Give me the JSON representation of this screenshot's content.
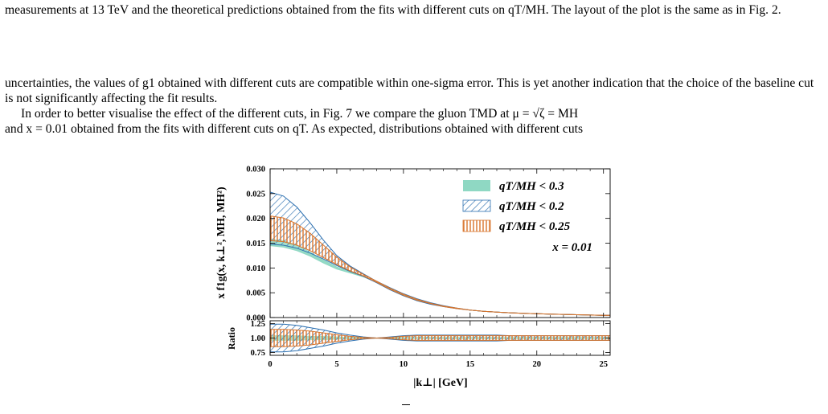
{
  "text": {
    "p1": "measurements at 13 TeV and the theoretical predictions obtained from the fits with different cuts on qT/MH. The layout of the plot is the same as in Fig. 2.",
    "p2": "uncertainties, the values of g1 obtained with different cuts are compatible within one-sigma error. This is yet another indication that the choice of the baseline cut is not significantly affecting the fit results.",
    "p3a": "In order to better visualise the effect of the different cuts, in Fig. 7 we compare the gluon TMD at μ = √ζ = MH",
    "p3b": "and x = 0.01 obtained from the fits with different cuts on qT. As expected, distributions obtained with different cuts"
  },
  "figure": {
    "ylabel": "x f1g(x, k⊥², MH, MH²)",
    "ratio_label": "Ratio",
    "xlabel": "|k⊥| [GeV]",
    "annotation": "x = 0.01",
    "colors": {
      "green": "#8fd8c3",
      "blue": "#2b6fb0",
      "orange": "#d8742c"
    }
  },
  "chart_data": {
    "type": "area",
    "x": [
      0,
      1,
      2,
      3,
      4,
      5,
      6,
      7,
      8,
      9,
      10,
      11,
      12,
      13,
      14,
      15,
      16,
      17,
      18,
      19,
      20,
      21,
      22,
      23,
      24,
      25,
      25.5
    ],
    "xlim": [
      0,
      25.5
    ],
    "xticks": [
      "0",
      "5",
      "10",
      "15",
      "20",
      "25"
    ],
    "main_panel": {
      "ylim": [
        0,
        0.03
      ],
      "yticks": [
        "0.000",
        "0.005",
        "0.010",
        "0.015",
        "0.020",
        "0.025",
        "0.030"
      ],
      "series": [
        {
          "name": "qT/MH < 0.3",
          "style": "solid",
          "upper": [
            0.0158,
            0.0155,
            0.0146,
            0.0132,
            0.0116,
            0.0102,
            0.0092,
            0.0083,
            0.0071,
            0.0058,
            0.0046,
            0.0036,
            0.0029,
            0.0023,
            0.00185,
            0.0015,
            0.00125,
            0.00108,
            0.00095,
            0.00085,
            0.00077,
            0.0007,
            0.00063,
            0.00056,
            0.0005,
            0.00045,
            0.00043
          ],
          "lower": [
            0.0145,
            0.0142,
            0.0135,
            0.0124,
            0.011,
            0.0098,
            0.009,
            0.0082,
            0.0071,
            0.0058,
            0.0046,
            0.0036,
            0.0029,
            0.0023,
            0.00185,
            0.0015,
            0.00125,
            0.00108,
            0.00095,
            0.00085,
            0.00077,
            0.0007,
            0.00063,
            0.00056,
            0.0005,
            0.00045,
            0.00043
          ]
        },
        {
          "name": "qT/MH < 0.2",
          "style": "diagonal-hatch",
          "upper": [
            0.0253,
            0.0245,
            0.0223,
            0.0191,
            0.0156,
            0.0125,
            0.0104,
            0.0088,
            0.0073,
            0.006,
            0.0048,
            0.0038,
            0.003,
            0.0024,
            0.0019,
            0.0015,
            0.00125,
            0.00108,
            0.00095,
            0.00085,
            0.00077,
            0.0007,
            0.00063,
            0.00056,
            0.0005,
            0.00045,
            0.00043
          ],
          "lower": [
            0.0148,
            0.0146,
            0.014,
            0.013,
            0.0118,
            0.0105,
            0.0093,
            0.0083,
            0.007,
            0.0056,
            0.0044,
            0.0034,
            0.0027,
            0.0022,
            0.0018,
            0.0015,
            0.00125,
            0.00108,
            0.00095,
            0.00085,
            0.00077,
            0.0007,
            0.00063,
            0.00056,
            0.0005,
            0.00045,
            0.00043
          ]
        },
        {
          "name": "qT/MH < 0.25",
          "style": "vertical-hatch",
          "upper": [
            0.0205,
            0.0201,
            0.0189,
            0.017,
            0.0146,
            0.0122,
            0.0102,
            0.0087,
            0.0073,
            0.0059,
            0.0047,
            0.0037,
            0.0029,
            0.0023,
            0.0019,
            0.0015,
            0.00125,
            0.00108,
            0.00095,
            0.00085,
            0.00077,
            0.0007,
            0.00063,
            0.00056,
            0.0005,
            0.00045,
            0.00043
          ],
          "lower": [
            0.0155,
            0.0153,
            0.0146,
            0.0135,
            0.0121,
            0.0107,
            0.0094,
            0.0084,
            0.0071,
            0.0057,
            0.0045,
            0.0035,
            0.0028,
            0.0022,
            0.0018,
            0.0015,
            0.00125,
            0.00108,
            0.00095,
            0.00085,
            0.00077,
            0.0007,
            0.00063,
            0.00056,
            0.0005,
            0.00045,
            0.00043
          ]
        }
      ]
    },
    "ratio_panel": {
      "ylim": [
        0.7,
        1.3
      ],
      "yticks": [
        "0.75",
        "1.00",
        "1.25"
      ],
      "series": [
        {
          "name": "qT/MH < 0.3",
          "style": "solid",
          "upper": [
            1.04,
            1.04,
            1.04,
            1.03,
            1.03,
            1.02,
            1.01,
            1.01,
            1.0,
            1.01,
            1.01,
            1.01,
            1.01,
            1.01,
            1.01,
            1.01,
            1.01,
            1.01,
            1.01,
            1.01,
            1.01,
            1.01,
            1.01,
            1.01,
            1.01,
            1.01,
            1.01
          ],
          "lower": [
            0.96,
            0.96,
            0.96,
            0.97,
            0.97,
            0.98,
            0.99,
            0.99,
            1.0,
            0.99,
            0.99,
            0.99,
            0.99,
            0.99,
            0.99,
            0.99,
            0.99,
            0.99,
            0.99,
            0.99,
            0.99,
            0.99,
            0.99,
            0.99,
            0.99,
            0.99,
            0.99
          ]
        },
        {
          "name": "qT/MH < 0.2",
          "style": "diagonal-hatch",
          "upper": [
            1.24,
            1.24,
            1.22,
            1.18,
            1.14,
            1.09,
            1.05,
            1.02,
            1.0,
            1.02,
            1.04,
            1.05,
            1.05,
            1.05,
            1.05,
            1.05,
            1.05,
            1.05,
            1.04,
            1.04,
            1.04,
            1.04,
            1.04,
            1.04,
            1.04,
            1.04,
            1.04
          ],
          "lower": [
            0.76,
            0.76,
            0.78,
            0.82,
            0.86,
            0.91,
            0.95,
            0.98,
            1.0,
            0.98,
            0.96,
            0.95,
            0.95,
            0.95,
            0.95,
            0.95,
            0.95,
            0.95,
            0.96,
            0.96,
            0.96,
            0.96,
            0.96,
            0.96,
            0.96,
            0.96,
            0.96
          ]
        },
        {
          "name": "qT/MH < 0.25",
          "style": "vertical-hatch",
          "upper": [
            1.15,
            1.15,
            1.14,
            1.12,
            1.09,
            1.06,
            1.03,
            1.01,
            1.0,
            1.01,
            1.03,
            1.04,
            1.04,
            1.04,
            1.04,
            1.04,
            1.04,
            1.04,
            1.04,
            1.04,
            1.04,
            1.04,
            1.04,
            1.04,
            1.04,
            1.04,
            1.04
          ],
          "lower": [
            0.85,
            0.85,
            0.86,
            0.88,
            0.91,
            0.94,
            0.97,
            0.99,
            1.0,
            0.99,
            0.97,
            0.96,
            0.96,
            0.96,
            0.96,
            0.96,
            0.96,
            0.96,
            0.96,
            0.96,
            0.96,
            0.96,
            0.96,
            0.96,
            0.96,
            0.96,
            0.96
          ]
        }
      ]
    },
    "legend_position": "top-right",
    "grid": false
  }
}
